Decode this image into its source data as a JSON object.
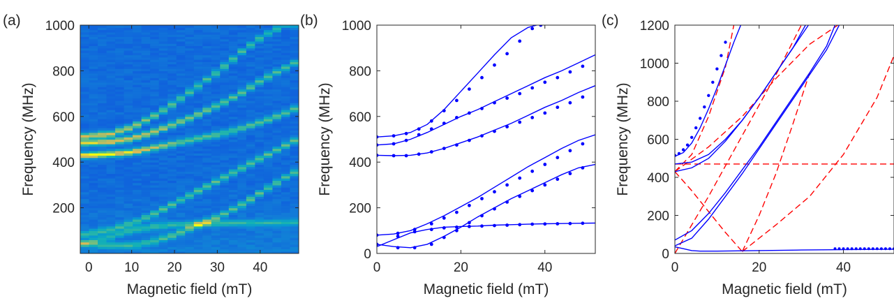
{
  "chart_data": [
    {
      "panel_label": "(a)",
      "type": "heatmap",
      "xlabel": "Magnetic field (mT)",
      "ylabel": "Frequency (MHz)",
      "xlim": [
        -2,
        49
      ],
      "ylim": [
        0,
        1000
      ],
      "xticks": [
        0,
        10,
        20,
        30,
        40
      ],
      "xtick_labels": [
        "0",
        "10",
        "20",
        "30",
        "40"
      ],
      "yticks": [
        200,
        400,
        600,
        800,
        1000
      ],
      "ytick_labels": [
        "200",
        "400",
        "600",
        "800",
        "1000"
      ],
      "field_columns_mT": [
        -1,
        1,
        3,
        5,
        7,
        9,
        11,
        13,
        15,
        17,
        19,
        21,
        23,
        25,
        27,
        29,
        31,
        33,
        35,
        37,
        39,
        41,
        43,
        45,
        47
      ],
      "colormap": "parula",
      "peak_tracks_MHz": [
        {
          "x": [
            -1,
            5,
            10,
            15,
            20,
            25,
            30,
            35,
            40,
            45,
            48
          ],
          "y": [
            425,
            432,
            440,
            460,
            480,
            500,
            520,
            545,
            575,
            610,
            640
          ],
          "intensity": [
            1.0,
            1.0,
            0.95,
            0.8,
            0.7,
            0.65,
            0.6,
            0.6,
            0.6,
            0.6,
            0.6
          ]
        },
        {
          "x": [
            -1,
            5,
            10,
            15,
            20,
            25,
            30,
            35,
            40,
            45,
            48
          ],
          "y": [
            480,
            485,
            500,
            530,
            565,
            605,
            650,
            700,
            760,
            810,
            840
          ],
          "intensity": [
            0.9,
            0.9,
            0.85,
            0.8,
            0.75,
            0.7,
            0.65,
            0.6,
            0.6,
            0.55,
            0.55
          ]
        },
        {
          "x": [
            -1,
            5,
            10,
            15,
            20,
            25,
            30,
            35,
            40,
            45,
            48
          ],
          "y": [
            510,
            520,
            550,
            600,
            660,
            730,
            800,
            880,
            950,
            1000,
            1000
          ],
          "intensity": [
            0.85,
            0.85,
            0.8,
            0.7,
            0.6,
            0.6,
            0.55,
            0.55,
            0.5,
            0.5,
            0.5
          ]
        },
        {
          "x": [
            -1,
            5,
            10,
            15,
            20,
            25,
            30,
            35,
            40,
            45,
            48
          ],
          "y": [
            40,
            30,
            30,
            50,
            80,
            120,
            160,
            210,
            270,
            330,
            360
          ],
          "intensity": [
            0.45,
            0.45,
            0.45,
            0.5,
            0.55,
            0.55,
            0.55,
            0.6,
            0.6,
            0.6,
            0.6
          ]
        },
        {
          "x": [
            -1,
            5,
            10,
            15,
            20,
            25,
            30,
            35,
            40,
            45,
            48
          ],
          "y": [
            80,
            100,
            130,
            170,
            220,
            270,
            320,
            370,
            420,
            470,
            500
          ],
          "intensity": [
            0.45,
            0.5,
            0.5,
            0.55,
            0.55,
            0.6,
            0.6,
            0.6,
            0.6,
            0.6,
            0.6
          ]
        },
        {
          "x": [
            -1,
            5,
            10,
            15,
            20,
            25,
            30,
            35,
            40,
            45,
            48
          ],
          "y": [
            40,
            70,
            100,
            115,
            122,
            126,
            128,
            130,
            130,
            132,
            132
          ],
          "intensity": [
            0.35,
            0.4,
            0.45,
            0.45,
            0.45,
            0.45,
            0.45,
            0.45,
            0.45,
            0.45,
            0.45
          ]
        }
      ]
    },
    {
      "panel_label": "(b)",
      "type": "line",
      "xlabel": "Magnetic field (mT)",
      "ylabel": "Frequency (MHz)",
      "xlim": [
        0,
        52
      ],
      "ylim": [
        0,
        1000
      ],
      "xticks": [
        0,
        20,
        40
      ],
      "xtick_labels": [
        "0",
        "20",
        "40"
      ],
      "yticks": [
        0,
        200,
        400,
        600,
        800,
        1000
      ],
      "ytick_labels": [
        "0",
        "200",
        "400",
        "600",
        "800",
        "1000"
      ],
      "series_color": "#0000ff",
      "series": [
        {
          "x": [
            0,
            4,
            8,
            12,
            16,
            20,
            24,
            28,
            32,
            36,
            40
          ],
          "y": [
            510,
            515,
            530,
            565,
            630,
            710,
            790,
            870,
            945,
            990,
            1010
          ],
          "markers_x": [
            0,
            4,
            7,
            10,
            13,
            16,
            19,
            22,
            25,
            28,
            31,
            34,
            37,
            39
          ],
          "markers_y": [
            510,
            515,
            525,
            545,
            580,
            625,
            670,
            720,
            770,
            825,
            875,
            930,
            985,
            1000
          ]
        },
        {
          "x": [
            0,
            4,
            8,
            12,
            16,
            20,
            24,
            28,
            32,
            36,
            40,
            44,
            48,
            52
          ],
          "y": [
            475,
            480,
            500,
            530,
            565,
            600,
            630,
            665,
            700,
            735,
            770,
            800,
            835,
            870
          ],
          "markers_x": [
            0,
            4,
            7,
            10,
            13,
            16,
            19,
            22,
            25,
            28,
            31,
            34,
            37,
            40,
            43,
            46,
            49
          ],
          "markers_y": [
            475,
            480,
            495,
            520,
            545,
            570,
            595,
            615,
            635,
            660,
            680,
            700,
            725,
            750,
            770,
            795,
            820
          ]
        },
        {
          "x": [
            0,
            4,
            8,
            12,
            16,
            20,
            24,
            28,
            32,
            36,
            40,
            44,
            48,
            52
          ],
          "y": [
            430,
            428,
            430,
            440,
            460,
            485,
            510,
            540,
            570,
            605,
            640,
            670,
            705,
            735
          ],
          "markers_x": [
            0,
            4,
            7,
            10,
            13,
            16,
            19,
            22,
            25,
            28,
            31,
            34,
            37,
            40,
            43,
            46,
            49
          ],
          "markers_y": [
            430,
            428,
            428,
            435,
            445,
            460,
            475,
            495,
            515,
            535,
            555,
            575,
            595,
            615,
            640,
            660,
            685
          ]
        },
        {
          "x": [
            0,
            4,
            8,
            12,
            16,
            20,
            24,
            28,
            32,
            36,
            40,
            44,
            48,
            52
          ],
          "y": [
            80,
            85,
            100,
            130,
            165,
            205,
            245,
            290,
            335,
            380,
            420,
            460,
            495,
            520
          ],
          "markers_x": [
            0,
            5,
            9,
            13,
            16,
            19,
            22,
            25,
            28,
            31,
            34,
            37,
            40,
            43,
            46,
            49
          ],
          "markers_y": [
            80,
            88,
            105,
            130,
            155,
            180,
            210,
            240,
            270,
            300,
            330,
            360,
            390,
            420,
            450,
            480
          ]
        },
        {
          "x": [
            0,
            4,
            8,
            12,
            16,
            20,
            24,
            28,
            32,
            36,
            40,
            44,
            48,
            52
          ],
          "y": [
            40,
            30,
            25,
            40,
            75,
            115,
            160,
            200,
            240,
            275,
            310,
            345,
            375,
            390
          ],
          "markers_x": [
            0,
            5,
            9,
            13,
            16,
            19,
            22,
            25,
            28,
            31,
            34,
            37,
            40,
            43,
            46,
            49
          ],
          "markers_y": [
            40,
            25,
            25,
            40,
            70,
            100,
            135,
            165,
            195,
            225,
            250,
            275,
            300,
            325,
            350,
            375
          ]
        },
        {
          "x": [
            0,
            4,
            8,
            12,
            16,
            20,
            24,
            28,
            32,
            36,
            40,
            44,
            48,
            52
          ],
          "y": [
            30,
            60,
            90,
            105,
            115,
            118,
            120,
            124,
            126,
            128,
            130,
            131,
            132,
            133
          ],
          "markers_x": [
            5,
            9,
            13,
            16,
            19,
            22,
            25,
            28,
            31,
            34,
            37,
            40,
            43,
            46,
            49
          ],
          "markers_y": [
            75,
            95,
            105,
            112,
            115,
            118,
            120,
            122,
            124,
            126,
            128,
            129,
            130,
            131,
            132
          ]
        }
      ]
    },
    {
      "panel_label": "(c)",
      "type": "line",
      "xlabel": "Magnetic field (mT)",
      "ylabel": "Frequency (MHz)",
      "xlim": [
        0,
        52
      ],
      "ylim": [
        0,
        1200
      ],
      "xticks": [
        0,
        20,
        40
      ],
      "xtick_labels": [
        "0",
        "20",
        "40"
      ],
      "yticks": [
        0,
        200,
        400,
        600,
        800,
        1000,
        1200
      ],
      "ytick_labels": [
        "0",
        "200",
        "400",
        "600",
        "800",
        "1000",
        "1200"
      ],
      "solid_color": "#0000ff",
      "dashed_color": "#ff0000",
      "series_solid": [
        {
          "x": [
            0,
            2,
            4,
            6,
            8,
            10,
            12,
            14,
            16
          ],
          "y": [
            510,
            530,
            580,
            660,
            760,
            870,
            990,
            1110,
            1220
          ]
        },
        {
          "x": [
            0,
            4,
            8,
            12,
            16,
            20,
            24,
            28,
            32
          ],
          "y": [
            470,
            480,
            520,
            600,
            700,
            820,
            950,
            1080,
            1210
          ]
        },
        {
          "x": [
            0,
            4,
            8,
            12,
            16,
            20,
            24,
            28,
            31
          ],
          "y": [
            430,
            450,
            500,
            590,
            700,
            820,
            950,
            1080,
            1200
          ]
        },
        {
          "x": [
            0,
            4,
            8,
            12,
            16,
            20,
            24,
            28,
            32,
            36,
            38
          ],
          "y": [
            70,
            120,
            210,
            320,
            440,
            560,
            690,
            820,
            950,
            1090,
            1200
          ]
        },
        {
          "x": [
            0,
            4,
            8,
            12,
            16,
            20,
            24,
            28,
            32,
            36,
            39
          ],
          "y": [
            40,
            80,
            180,
            300,
            420,
            550,
            680,
            810,
            940,
            1070,
            1200
          ]
        },
        {
          "x": [
            0,
            2,
            4,
            6,
            10,
            20,
            30,
            40,
            52
          ],
          "y": [
            35,
            25,
            15,
            12,
            12,
            15,
            18,
            20,
            22
          ]
        }
      ],
      "series_dashed": [
        {
          "x": [
            0,
            52
          ],
          "y": [
            470,
            470
          ]
        },
        {
          "x": [
            0,
            4,
            8,
            12,
            14
          ],
          "y": [
            430,
            520,
            720,
            980,
            1200
          ]
        },
        {
          "x": [
            0,
            8,
            16,
            24,
            30
          ],
          "y": [
            0,
            300,
            620,
            940,
            1200
          ]
        },
        {
          "x": [
            0,
            4,
            8,
            12,
            16
          ],
          "y": [
            430,
            330,
            220,
            110,
            10
          ]
        },
        {
          "x": [
            16,
            20,
            24,
            28,
            32
          ],
          "y": [
            10,
            200,
            420,
            680,
            950
          ]
        },
        {
          "x": [
            16,
            24,
            32,
            40,
            48,
            52
          ],
          "y": [
            10,
            150,
            300,
            520,
            820,
            1040
          ]
        },
        {
          "x": [
            0,
            8,
            16,
            24,
            32,
            40
          ],
          "y": [
            430,
            560,
            720,
            920,
            1100,
            1220
          ]
        }
      ],
      "blue_markers_x": [
        0,
        1,
        2,
        3,
        4,
        5,
        6,
        7,
        8,
        9,
        10,
        11,
        12
      ],
      "blue_markers_y": [
        515,
        525,
        545,
        570,
        610,
        660,
        710,
        770,
        830,
        900,
        970,
        1040,
        1110
      ],
      "flat_markers_x": [
        38,
        39,
        40,
        41,
        42,
        43,
        44,
        45,
        46,
        47,
        48,
        49,
        50,
        51,
        52
      ],
      "flat_markers_y": [
        25,
        25,
        25,
        25,
        25,
        25,
        25,
        25,
        25,
        25,
        25,
        25,
        25,
        25,
        25
      ]
    }
  ]
}
